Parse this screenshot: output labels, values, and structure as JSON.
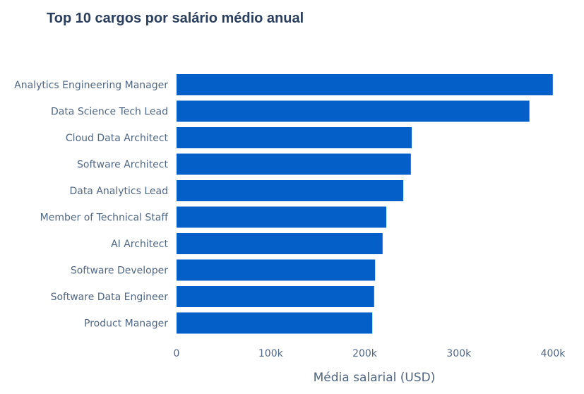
{
  "chart_data": {
    "type": "bar",
    "orientation": "horizontal",
    "title": "Top 10 cargos por salário médio anual",
    "xlabel": "Média salarial (USD)",
    "ylabel": "",
    "xlim": [
      0,
      400000
    ],
    "x_ticks": [
      0,
      100000,
      200000,
      300000,
      400000
    ],
    "x_tick_labels": [
      "0",
      "100k",
      "200k",
      "300k",
      "400k"
    ],
    "categories": [
      "Analytics Engineering Manager",
      "Data Science Tech Lead",
      "Cloud Data Architect",
      "Software Architect",
      "Data Analytics Lead",
      "Member of Technical Staff",
      "AI Architect",
      "Software Developer",
      "Software Data Engineer",
      "Product Manager"
    ],
    "values": [
      399880,
      375000,
      250000,
      249000,
      241000,
      223000,
      219000,
      211000,
      210000,
      208000
    ],
    "bar_color": "#0460C8",
    "grid": false,
    "legend": "none"
  }
}
